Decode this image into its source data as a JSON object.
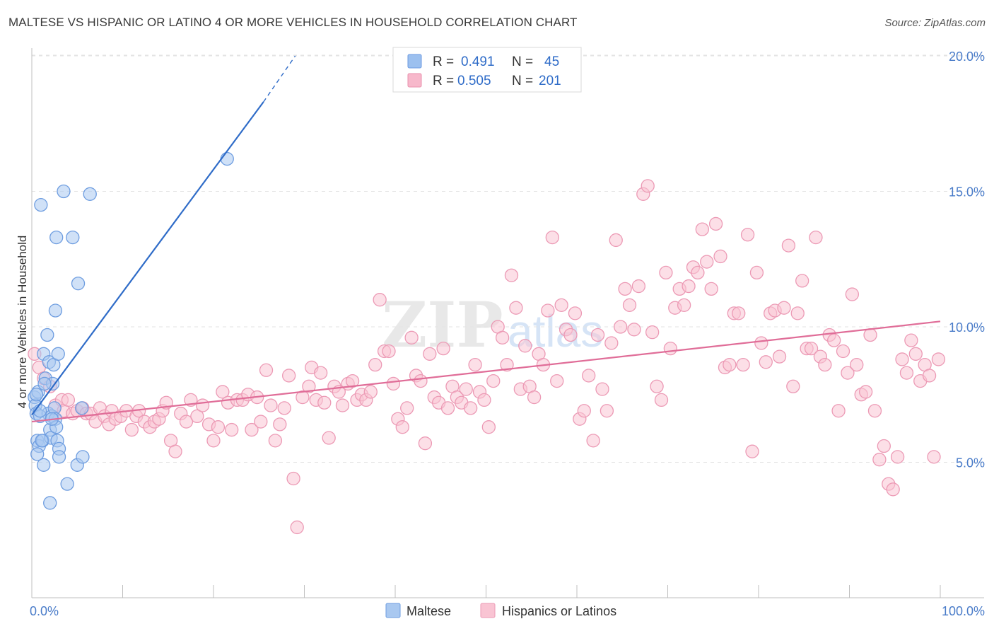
{
  "title": "MALTESE VS HISPANIC OR LATINO 4 OR MORE VEHICLES IN HOUSEHOLD CORRELATION CHART",
  "source": "Source: ZipAtlas.com",
  "watermark": {
    "zip": "ZIP",
    "atlas": "atlas"
  },
  "legend_top": [
    {
      "r_label": "R =",
      "r_value": "0.491",
      "n_label": "N =",
      "n_value": "45",
      "color": "#9cc0ef",
      "stroke": "#6b9ae0"
    },
    {
      "r_label": "R =",
      "r_value": "0.505",
      "n_label": "N =",
      "n_value": "201",
      "color": "#f7b8cb",
      "stroke": "#e890ac"
    }
  ],
  "colors": {
    "blue_fill": "#a9c8f0",
    "blue_stroke": "#6e9de0",
    "blue_line": "#2f6cc8",
    "pink_fill": "#f9c4d3",
    "pink_stroke": "#ec9ab5",
    "pink_line": "#e06d98",
    "tick_label": "#4a7cc9"
  },
  "chart_data": {
    "type": "scatter",
    "title": "MALTESE VS HISPANIC OR LATINO 4 OR MORE VEHICLES IN HOUSEHOLD CORRELATION CHART",
    "xlabel": "",
    "ylabel": "4 or more Vehicles in Household",
    "xlim": [
      0,
      100
    ],
    "ylim": [
      0,
      21
    ],
    "x_tick_labels": [
      "0.0%",
      "100.0%"
    ],
    "y_ticks": [
      5,
      10,
      15,
      20
    ],
    "y_tick_labels": [
      "5.0%",
      "10.0%",
      "15.0%",
      "20.0%"
    ],
    "grid": true,
    "legend_position": "top-center",
    "series": [
      {
        "name": "Maltese",
        "points": [
          [
            0.3,
            7.4
          ],
          [
            0.4,
            7.1
          ],
          [
            0.5,
            6.8
          ],
          [
            0.6,
            5.8
          ],
          [
            0.8,
            5.6
          ],
          [
            0.7,
            7.6
          ],
          [
            1.0,
            14.5
          ],
          [
            1.2,
            5.8
          ],
          [
            1.3,
            9.0
          ],
          [
            1.5,
            8.1
          ],
          [
            1.7,
            9.7
          ],
          [
            1.8,
            6.8
          ],
          [
            1.9,
            8.7
          ],
          [
            2.0,
            6.2
          ],
          [
            2.1,
            5.9
          ],
          [
            2.2,
            6.7
          ],
          [
            2.3,
            7.9
          ],
          [
            2.4,
            8.6
          ],
          [
            2.5,
            7.0
          ],
          [
            2.6,
            6.6
          ],
          [
            2.7,
            6.3
          ],
          [
            2.8,
            5.8
          ],
          [
            2.9,
            9.0
          ],
          [
            2.6,
            10.6
          ],
          [
            2.7,
            13.3
          ],
          [
            3.0,
            5.5
          ],
          [
            3.5,
            15.0
          ],
          [
            4.5,
            13.3
          ],
          [
            5.1,
            11.6
          ],
          [
            6.4,
            14.9
          ],
          [
            21.5,
            16.2
          ],
          [
            1.3,
            4.9
          ],
          [
            2.0,
            3.5
          ],
          [
            3.9,
            4.2
          ],
          [
            5.0,
            4.9
          ],
          [
            5.6,
            5.2
          ],
          [
            0.5,
            7.5
          ],
          [
            0.9,
            6.7
          ],
          [
            1.4,
            7.9
          ],
          [
            2.2,
            6.6
          ],
          [
            5.5,
            7.0
          ],
          [
            0.6,
            5.3
          ],
          [
            1.1,
            5.8
          ],
          [
            3.0,
            5.2
          ],
          [
            0.9,
            6.9
          ]
        ]
      },
      {
        "name": "Hispanics or Latinos",
        "points": [
          [
            0.3,
            9.0
          ],
          [
            0.8,
            8.5
          ],
          [
            1.3,
            8.1
          ],
          [
            2.0,
            7.8
          ],
          [
            2.6,
            7.1
          ],
          [
            3.3,
            7.3
          ],
          [
            3.5,
            6.9
          ],
          [
            4.0,
            7.3
          ],
          [
            4.5,
            6.8
          ],
          [
            5.0,
            6.9
          ],
          [
            5.6,
            7.0
          ],
          [
            6.0,
            6.8
          ],
          [
            6.5,
            6.8
          ],
          [
            7.0,
            6.5
          ],
          [
            7.5,
            7.0
          ],
          [
            8.0,
            6.7
          ],
          [
            8.5,
            6.4
          ],
          [
            8.8,
            6.9
          ],
          [
            9.2,
            6.6
          ],
          [
            9.8,
            6.7
          ],
          [
            10.4,
            6.9
          ],
          [
            11.0,
            6.2
          ],
          [
            11.5,
            6.7
          ],
          [
            11.8,
            6.9
          ],
          [
            12.4,
            6.5
          ],
          [
            13.0,
            6.3
          ],
          [
            13.5,
            6.5
          ],
          [
            14.0,
            6.6
          ],
          [
            14.4,
            6.9
          ],
          [
            14.8,
            7.2
          ],
          [
            15.3,
            5.8
          ],
          [
            15.8,
            5.4
          ],
          [
            16.4,
            6.8
          ],
          [
            17.0,
            6.5
          ],
          [
            17.5,
            7.3
          ],
          [
            18.2,
            6.7
          ],
          [
            18.8,
            7.1
          ],
          [
            19.5,
            6.4
          ],
          [
            20.0,
            5.8
          ],
          [
            20.5,
            6.3
          ],
          [
            21.0,
            7.6
          ],
          [
            21.6,
            7.2
          ],
          [
            22.0,
            6.2
          ],
          [
            22.6,
            7.3
          ],
          [
            23.2,
            7.3
          ],
          [
            23.8,
            7.5
          ],
          [
            24.2,
            6.2
          ],
          [
            24.8,
            7.4
          ],
          [
            25.2,
            6.5
          ],
          [
            25.8,
            8.4
          ],
          [
            26.3,
            7.1
          ],
          [
            26.8,
            5.8
          ],
          [
            27.3,
            6.4
          ],
          [
            27.8,
            7.0
          ],
          [
            28.3,
            8.2
          ],
          [
            28.8,
            4.4
          ],
          [
            29.2,
            2.6
          ],
          [
            29.8,
            7.4
          ],
          [
            30.5,
            7.8
          ],
          [
            30.8,
            8.5
          ],
          [
            31.3,
            7.3
          ],
          [
            31.8,
            8.3
          ],
          [
            32.2,
            7.2
          ],
          [
            32.7,
            5.9
          ],
          [
            33.3,
            7.8
          ],
          [
            33.8,
            7.6
          ],
          [
            34.2,
            7.1
          ],
          [
            34.8,
            7.9
          ],
          [
            35.3,
            8.0
          ],
          [
            35.8,
            7.3
          ],
          [
            36.3,
            7.5
          ],
          [
            36.8,
            7.3
          ],
          [
            37.3,
            7.6
          ],
          [
            37.8,
            8.6
          ],
          [
            38.3,
            11.0
          ],
          [
            38.8,
            9.1
          ],
          [
            39.3,
            9.1
          ],
          [
            39.8,
            7.9
          ],
          [
            40.3,
            6.6
          ],
          [
            40.8,
            6.3
          ],
          [
            41.3,
            7.0
          ],
          [
            41.8,
            9.6
          ],
          [
            42.3,
            8.2
          ],
          [
            42.8,
            8.0
          ],
          [
            43.3,
            5.7
          ],
          [
            43.8,
            9.0
          ],
          [
            44.3,
            7.4
          ],
          [
            44.8,
            7.2
          ],
          [
            45.3,
            9.2
          ],
          [
            45.8,
            7.0
          ],
          [
            46.3,
            7.8
          ],
          [
            46.8,
            7.4
          ],
          [
            47.3,
            7.2
          ],
          [
            47.8,
            7.7
          ],
          [
            48.3,
            7.0
          ],
          [
            48.8,
            8.6
          ],
          [
            49.3,
            7.6
          ],
          [
            49.8,
            7.3
          ],
          [
            50.3,
            6.3
          ],
          [
            50.8,
            8.0
          ],
          [
            51.3,
            10.0
          ],
          [
            51.8,
            9.6
          ],
          [
            52.3,
            8.6
          ],
          [
            52.8,
            11.9
          ],
          [
            53.3,
            10.7
          ],
          [
            53.8,
            7.7
          ],
          [
            54.3,
            9.3
          ],
          [
            54.8,
            7.8
          ],
          [
            55.3,
            7.4
          ],
          [
            55.8,
            9.0
          ],
          [
            56.3,
            8.6
          ],
          [
            56.8,
            10.6
          ],
          [
            57.3,
            13.3
          ],
          [
            57.8,
            8.0
          ],
          [
            58.3,
            10.8
          ],
          [
            58.8,
            9.9
          ],
          [
            59.3,
            9.7
          ],
          [
            59.8,
            10.5
          ],
          [
            60.3,
            6.6
          ],
          [
            60.8,
            6.9
          ],
          [
            61.3,
            8.2
          ],
          [
            61.8,
            5.8
          ],
          [
            62.3,
            9.7
          ],
          [
            62.8,
            7.7
          ],
          [
            63.3,
            6.9
          ],
          [
            63.8,
            9.4
          ],
          [
            64.3,
            13.2
          ],
          [
            64.8,
            10.0
          ],
          [
            65.3,
            11.4
          ],
          [
            65.8,
            10.8
          ],
          [
            66.3,
            9.9
          ],
          [
            66.8,
            11.5
          ],
          [
            67.3,
            14.9
          ],
          [
            67.8,
            15.2
          ],
          [
            68.3,
            9.8
          ],
          [
            68.8,
            7.8
          ],
          [
            69.3,
            7.3
          ],
          [
            69.8,
            12.0
          ],
          [
            70.3,
            9.2
          ],
          [
            70.8,
            10.7
          ],
          [
            71.3,
            11.4
          ],
          [
            71.8,
            10.8
          ],
          [
            72.3,
            11.5
          ],
          [
            72.8,
            12.2
          ],
          [
            73.3,
            12.0
          ],
          [
            73.8,
            13.6
          ],
          [
            74.3,
            12.4
          ],
          [
            74.8,
            11.4
          ],
          [
            75.3,
            13.8
          ],
          [
            75.8,
            12.6
          ],
          [
            76.3,
            8.5
          ],
          [
            76.8,
            8.6
          ],
          [
            77.3,
            10.5
          ],
          [
            77.8,
            10.5
          ],
          [
            78.3,
            8.6
          ],
          [
            78.8,
            13.4
          ],
          [
            79.3,
            5.4
          ],
          [
            79.8,
            12.0
          ],
          [
            80.3,
            9.4
          ],
          [
            80.8,
            8.7
          ],
          [
            81.3,
            10.5
          ],
          [
            81.8,
            10.6
          ],
          [
            82.3,
            8.9
          ],
          [
            82.8,
            10.7
          ],
          [
            83.3,
            13.0
          ],
          [
            83.8,
            7.8
          ],
          [
            84.3,
            10.5
          ],
          [
            84.8,
            11.7
          ],
          [
            85.3,
            9.2
          ],
          [
            85.8,
            9.2
          ],
          [
            86.3,
            13.3
          ],
          [
            86.8,
            8.9
          ],
          [
            87.3,
            8.6
          ],
          [
            87.8,
            9.7
          ],
          [
            88.3,
            9.5
          ],
          [
            88.8,
            6.9
          ],
          [
            89.3,
            9.1
          ],
          [
            89.8,
            8.3
          ],
          [
            90.3,
            11.2
          ],
          [
            90.8,
            8.6
          ],
          [
            91.3,
            7.5
          ],
          [
            91.8,
            7.6
          ],
          [
            92.3,
            9.7
          ],
          [
            92.8,
            6.9
          ],
          [
            93.3,
            5.1
          ],
          [
            93.8,
            5.6
          ],
          [
            94.3,
            4.2
          ],
          [
            94.8,
            4.0
          ],
          [
            95.3,
            5.2
          ],
          [
            95.8,
            8.8
          ],
          [
            96.3,
            8.3
          ],
          [
            96.8,
            9.5
          ],
          [
            97.3,
            9.0
          ],
          [
            97.8,
            8.0
          ],
          [
            98.3,
            8.6
          ],
          [
            98.8,
            8.2
          ],
          [
            99.3,
            5.2
          ],
          [
            99.8,
            8.8
          ]
        ]
      }
    ],
    "trendlines": [
      {
        "series": "Maltese",
        "x0": 0,
        "y0": 6.75,
        "x1": 25.5,
        "y1": 18.3,
        "dashed_to_x": 29.0,
        "dashed_to_y": 20.0
      },
      {
        "series": "Hispanics or Latinos",
        "x0": 0,
        "y0": 6.5,
        "x1": 100,
        "y1": 10.2
      }
    ]
  },
  "legend_bottom": [
    {
      "label": "Maltese"
    },
    {
      "label": "Hispanics or Latinos"
    }
  ]
}
